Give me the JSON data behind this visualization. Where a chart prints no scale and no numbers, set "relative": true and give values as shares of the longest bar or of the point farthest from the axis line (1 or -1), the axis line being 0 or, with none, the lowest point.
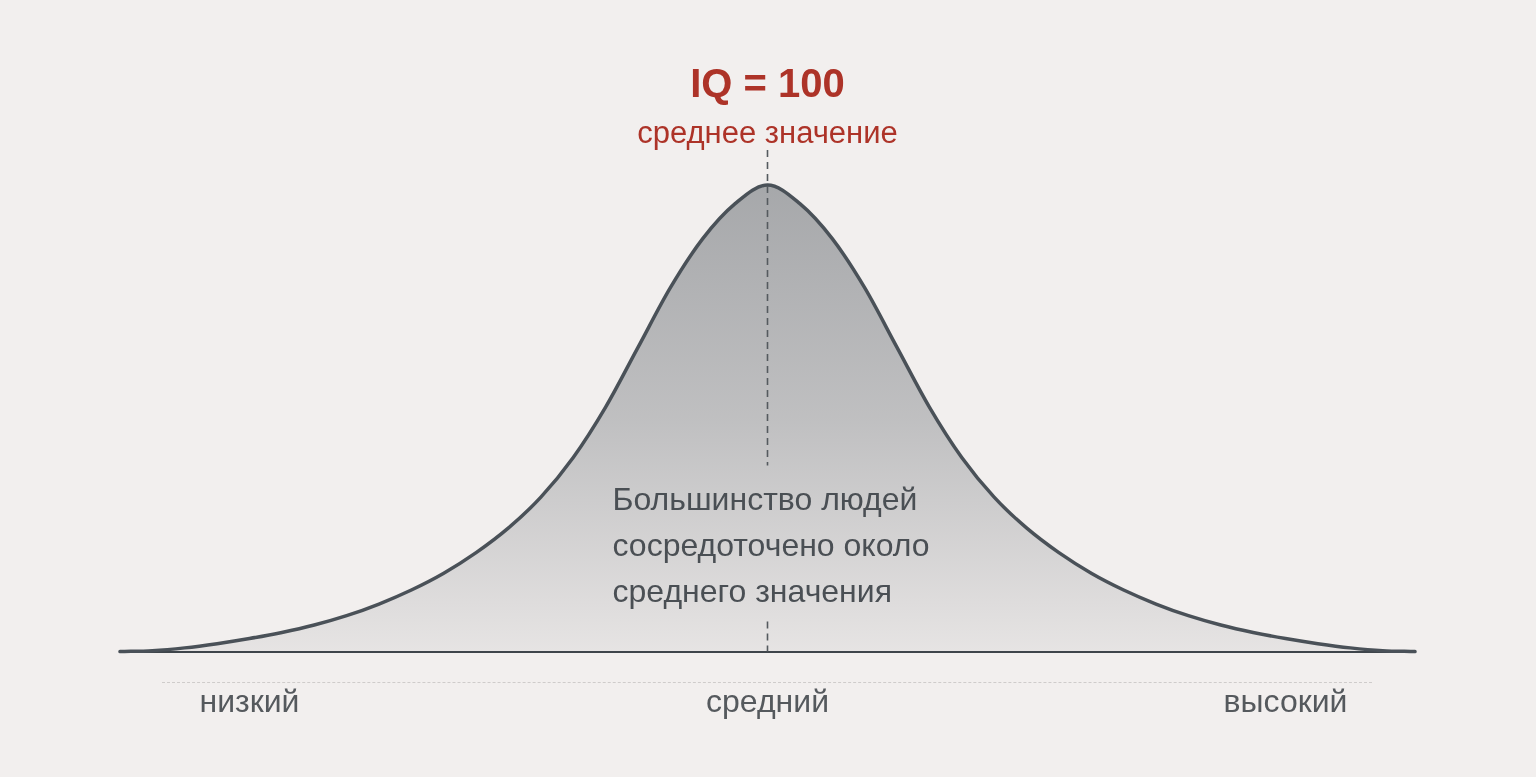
{
  "chart_data": {
    "type": "area",
    "relative": true,
    "categories": [
      null,
      null,
      null,
      null,
      "низкий",
      null,
      null,
      null,
      null,
      null,
      null,
      null,
      null,
      null,
      null,
      null,
      null,
      null,
      null,
      null,
      "средний",
      null,
      null,
      null,
      null,
      null,
      null,
      null,
      null,
      null,
      null,
      null,
      null,
      null,
      null,
      null,
      "высокий",
      null,
      null,
      null,
      null
    ],
    "values": [
      0,
      0.002,
      0.008,
      0.017,
      0.028,
      0.041,
      0.057,
      0.077,
      0.102,
      0.132,
      0.168,
      0.212,
      0.265,
      0.331,
      0.416,
      0.524,
      0.652,
      0.78,
      0.885,
      0.96,
      1,
      0.96,
      0.885,
      0.78,
      0.652,
      0.524,
      0.416,
      0.331,
      0.265,
      0.212,
      0.168,
      0.132,
      0.102,
      0.077,
      0.057,
      0.041,
      0.028,
      0.017,
      0.008,
      0.002,
      0
    ],
    "color": "#4a5158",
    "marker": "none",
    "ref_lines": [
      {
        "axis": "x",
        "value": "средний",
        "label": "IQ = 100",
        "color": "#555a5f",
        "line_style": "dashed"
      }
    ],
    "annotations": [
      "среднее значение",
      "Большинство людей сосредоточено около среднего значения"
    ]
  }
}
